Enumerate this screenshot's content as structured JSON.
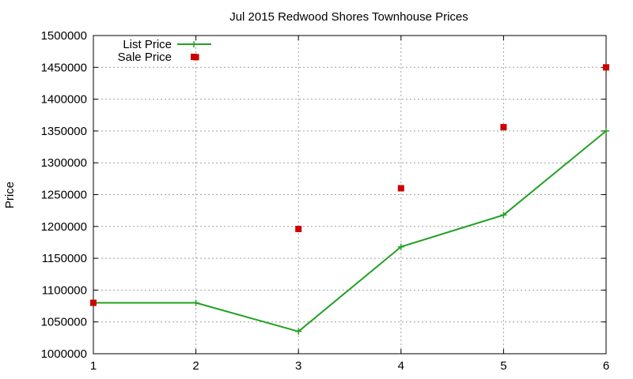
{
  "chart_data": {
    "type": "line",
    "title": "Jul 2015 Redwood Shores Townhouse Prices",
    "xlabel": "",
    "ylabel": "Price",
    "x": [
      1,
      2,
      3,
      4,
      5,
      6
    ],
    "xlim": [
      1,
      6
    ],
    "ylim": [
      1000000,
      1500000
    ],
    "yticks": [
      1000000,
      1050000,
      1100000,
      1150000,
      1200000,
      1250000,
      1300000,
      1350000,
      1400000,
      1450000,
      1500000
    ],
    "xticks": [
      1,
      2,
      3,
      4,
      5,
      6
    ],
    "grid": true,
    "legend_position": "top-left",
    "series": [
      {
        "name": "List Price",
        "style": "line-with-plus-markers",
        "color": "#22a022",
        "x": [
          1,
          2,
          3,
          4,
          5,
          6
        ],
        "values": [
          1080000,
          1080000,
          1035000,
          1168000,
          1218000,
          1350000
        ]
      },
      {
        "name": "Sale Price",
        "style": "square-markers",
        "color": "#cc0000",
        "x": [
          1,
          2,
          3,
          4,
          5,
          6
        ],
        "values": [
          1080000,
          1466000,
          1196000,
          1260000,
          1356000,
          1450000
        ]
      }
    ]
  }
}
